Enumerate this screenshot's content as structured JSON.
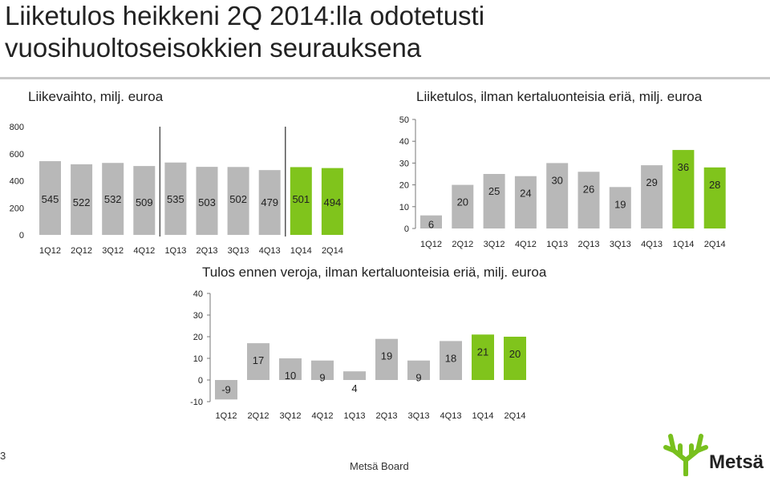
{
  "slide": {
    "title_line1": "Liiketulos heikkeni 2Q 2014:lla odotetusti",
    "title_line2": "vuosihuoltoseisokkien seurauksena",
    "page_number": "3",
    "footer": "Metsä Board",
    "logo_text": "Metsä"
  },
  "colors": {
    "gray_bar": "#b8b8b8",
    "green_bar": "#80c41c",
    "axis": "#777777"
  },
  "chart_data": [
    {
      "type": "bar",
      "title": "Liikevaihto, milj. euroa",
      "categories": [
        "1Q12",
        "2Q12",
        "3Q12",
        "4Q12",
        "1Q13",
        "2Q13",
        "3Q13",
        "4Q13",
        "1Q14",
        "2Q14"
      ],
      "values": [
        545,
        522,
        532,
        509,
        535,
        503,
        502,
        479,
        501,
        494
      ],
      "highlight": [
        8,
        9
      ],
      "ylim": [
        0,
        800
      ],
      "yticks": [
        0,
        200,
        400,
        600,
        800
      ],
      "separators_after": [
        3,
        7
      ]
    },
    {
      "type": "bar",
      "title": "Liiketulos, ilman kertaluonteisia eriä, milj. euroa",
      "categories": [
        "1Q12",
        "2Q12",
        "3Q12",
        "4Q12",
        "1Q13",
        "2Q13",
        "3Q13",
        "4Q13",
        "1Q14",
        "2Q14"
      ],
      "values": [
        6,
        20,
        25,
        24,
        30,
        26,
        19,
        29,
        36,
        28
      ],
      "highlight": [
        8,
        9
      ],
      "ylim": [
        0,
        50
      ],
      "yticks": [
        0,
        10,
        20,
        30,
        40,
        50
      ],
      "separators_after": []
    },
    {
      "type": "bar",
      "title": "Tulos ennen veroja, ilman kertaluonteisia eriä, milj. euroa",
      "categories": [
        "1Q12",
        "2Q12",
        "3Q12",
        "4Q12",
        "1Q13",
        "2Q13",
        "3Q13",
        "4Q13",
        "1Q14",
        "2Q14"
      ],
      "values": [
        -9,
        17,
        10,
        9,
        4,
        19,
        9,
        18,
        21,
        20
      ],
      "highlight": [
        8,
        9
      ],
      "ylim": [
        -10,
        40
      ],
      "yticks": [
        -10,
        0,
        10,
        20,
        30,
        40
      ],
      "separators_after": []
    }
  ]
}
